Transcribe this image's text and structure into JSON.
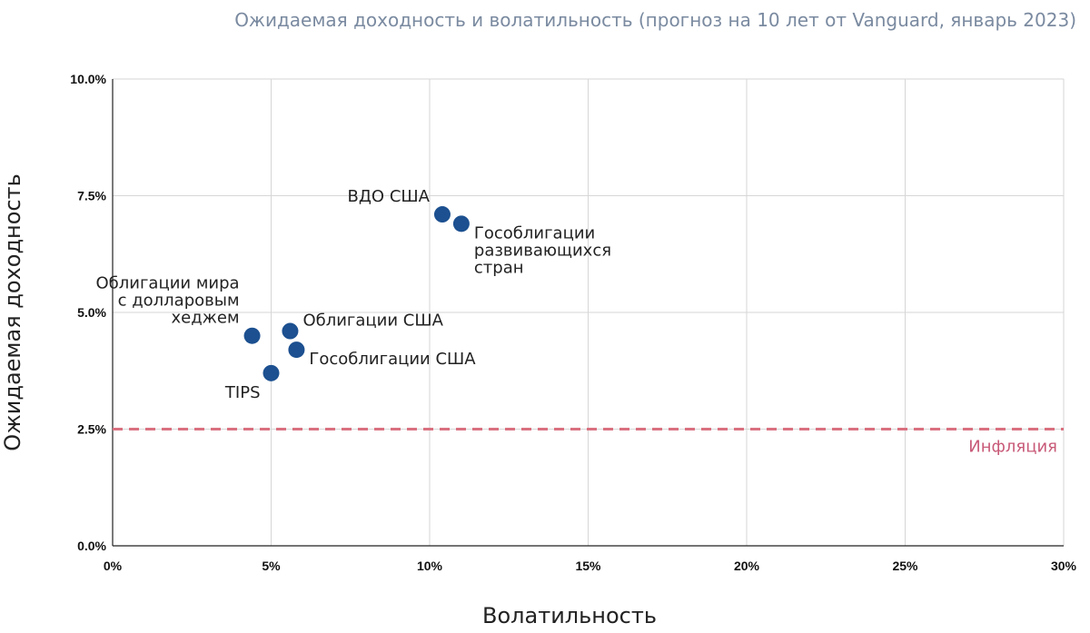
{
  "chart_data": {
    "type": "scatter",
    "title": "Ожидаемая доходность и волатильность (прогноз на 10 лет от Vanguard, январь 2023)",
    "xlabel": "Волатильность",
    "ylabel": "Ожидаемая доходность",
    "xlim": [
      0,
      30
    ],
    "ylim": [
      0,
      10
    ],
    "x_ticks": [
      0,
      5,
      10,
      15,
      20,
      25,
      30
    ],
    "x_tick_labels": [
      "0%",
      "5%",
      "10%",
      "15%",
      "20%",
      "25%",
      "30%"
    ],
    "y_ticks": [
      0,
      2.5,
      5,
      7.5,
      10
    ],
    "y_tick_labels": [
      "0.0%",
      "2.5%",
      "5.0%",
      "7.5%",
      "10.0%"
    ],
    "grid": true,
    "point_color": "#1c5090",
    "points": [
      {
        "label_lines": [
          "ВДО США"
        ],
        "x": 10.4,
        "y": 7.1,
        "label_pos": "upper-left"
      },
      {
        "label_lines": [
          "Гособлигации",
          "развивающихся",
          "стран"
        ],
        "x": 11.0,
        "y": 6.9,
        "label_pos": "lower-right"
      },
      {
        "label_lines": [
          "Облигации мира",
          "с долларовым",
          "хеджем"
        ],
        "x": 4.4,
        "y": 4.5,
        "label_pos": "upper-left"
      },
      {
        "label_lines": [
          "Облигации США"
        ],
        "x": 5.6,
        "y": 4.6,
        "label_pos": "upper-right"
      },
      {
        "label_lines": [
          "Гособлигации США"
        ],
        "x": 5.8,
        "y": 4.2,
        "label_pos": "lower-right"
      },
      {
        "label_lines": [
          "TIPS"
        ],
        "x": 5.0,
        "y": 3.7,
        "label_pos": "lower-left"
      }
    ],
    "reference_line": {
      "label": "Инфляция",
      "y": 2.5,
      "style": "dashed",
      "color": "#d9707f",
      "label_color": "#c85a78"
    }
  }
}
